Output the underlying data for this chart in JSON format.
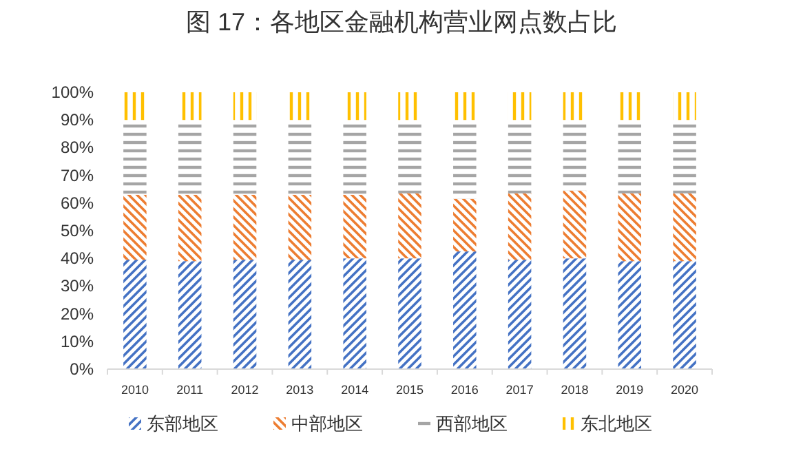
{
  "chart_data": {
    "type": "bar",
    "stacked": true,
    "title": "图 17：各地区金融机构营业网点数占比",
    "categories": [
      "2010",
      "2011",
      "2012",
      "2013",
      "2014",
      "2015",
      "2016",
      "2017",
      "2018",
      "2019",
      "2020"
    ],
    "series": [
      {
        "name": "东部地区",
        "color": "#4472c4",
        "values": [
          39.5,
          39,
          39.5,
          39.5,
          40,
          40,
          42.5,
          39.5,
          40,
          39,
          39
        ]
      },
      {
        "name": "中部地区",
        "color": "#ed7d31",
        "values": [
          23.5,
          24,
          23.5,
          23.5,
          23,
          23.5,
          19,
          24,
          24.5,
          24.5,
          24.5
        ]
      },
      {
        "name": "西部地区",
        "color": "#a5a5a5",
        "values": [
          27,
          27,
          27,
          27,
          27,
          26.5,
          28.5,
          26.5,
          25.5,
          26.5,
          26.5
        ]
      },
      {
        "name": "东北地区",
        "color": "#ffc000",
        "values": [
          10,
          10,
          10,
          10,
          10,
          10,
          10,
          10,
          10,
          10,
          10
        ]
      }
    ],
    "ylim": [
      0,
      100
    ],
    "yticks": [
      {
        "value": 0,
        "label": "0%"
      },
      {
        "value": 10,
        "label": "10%"
      },
      {
        "value": 20,
        "label": "20%"
      },
      {
        "value": 30,
        "label": "30%"
      },
      {
        "value": 40,
        "label": "40%"
      },
      {
        "value": 50,
        "label": "50%"
      },
      {
        "value": 60,
        "label": "60%"
      },
      {
        "value": 70,
        "label": "70%"
      },
      {
        "value": 80,
        "label": "80%"
      },
      {
        "value": 90,
        "label": "90%"
      },
      {
        "value": 100,
        "label": "100%"
      }
    ],
    "grid": false,
    "legend": "bottom"
  }
}
